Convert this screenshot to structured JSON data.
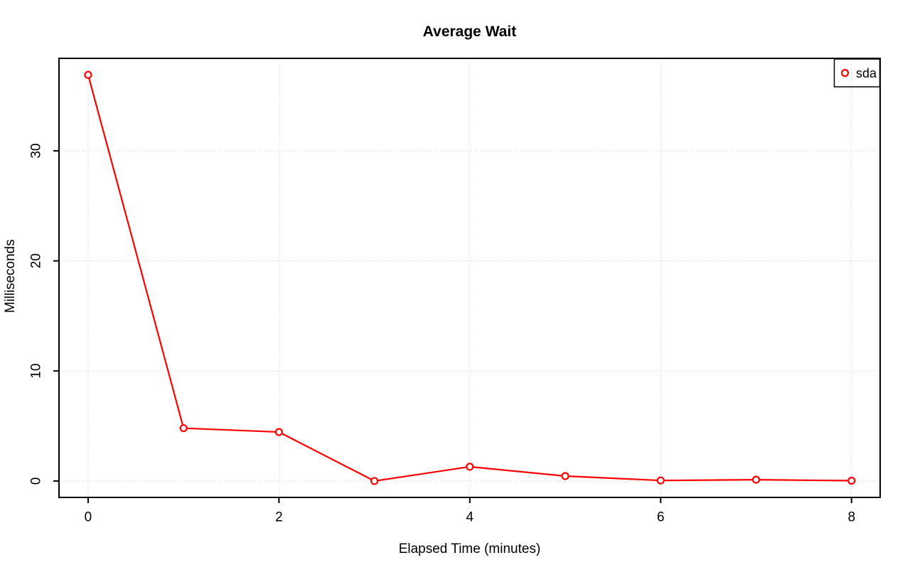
{
  "page": {
    "background": "#ffffff"
  },
  "chart_data": {
    "type": "line",
    "title": "Average Wait",
    "xlabel": "Elapsed Time (minutes)",
    "ylabel": "Milliseconds",
    "x": [
      0,
      1,
      2,
      3,
      4,
      5,
      6,
      7,
      8
    ],
    "series": [
      {
        "name": "sda",
        "values": [
          36.9,
          4.8,
          4.45,
          0,
          1.3,
          0.45,
          0.05,
          0.12,
          0.03
        ],
        "color": "#ff0000",
        "marker": "open-circle"
      }
    ],
    "xticks": [
      0,
      2,
      4,
      6,
      8
    ],
    "yticks": [
      0,
      10,
      20,
      30
    ],
    "xlim": [
      -0.305,
      8.3
    ],
    "ylim": [
      -1.49,
      38.4
    ],
    "grid": true,
    "grid_color": "#c9c9c9",
    "axis_color": "#000000",
    "legend": {
      "position": "topright",
      "entries": [
        "sda"
      ]
    }
  }
}
